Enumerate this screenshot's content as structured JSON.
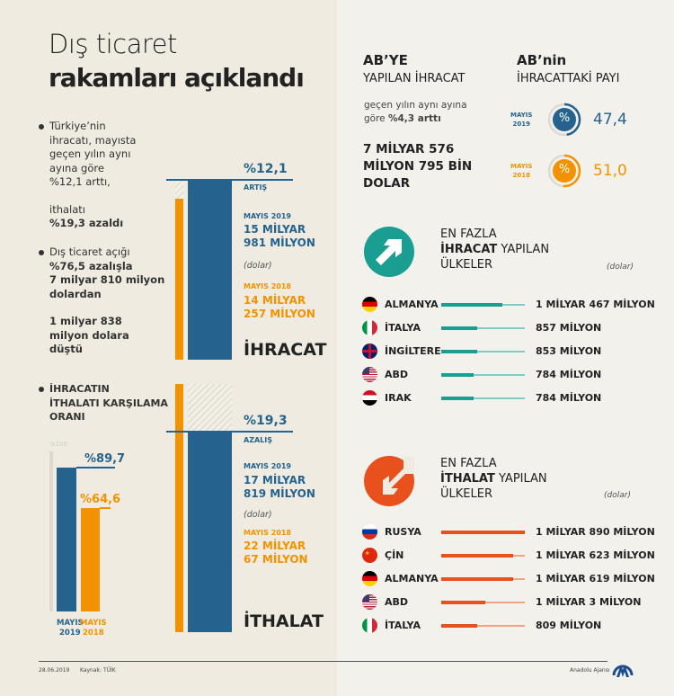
{
  "title": {
    "line1": "Dış ticaret",
    "line2": "rakamları açıklandı"
  },
  "bullets": {
    "b1": [
      "Türkiye’nin",
      "ihracatı, mayısta",
      "geçen yılın aynı",
      "ayına göre",
      "%12,1 arttı,"
    ],
    "b1b": [
      "ithalatı",
      "%19,3 azaldı"
    ],
    "b2": [
      "Dış ticaret açığı",
      "%76,5 azalışla",
      "7 milyar 810 milyon",
      "dolardan"
    ],
    "b2b": [
      "1 milyar 838",
      "milyon dolara",
      "düştü"
    ],
    "b3": [
      "İHRACATIN",
      "İTHALATI KARŞILAMA",
      "ORANI"
    ]
  },
  "export": {
    "change": "%12,1",
    "change_label": "ARTIŞ",
    "y2019_label": "MAYIS 2019",
    "y2019_value": [
      "15 MİLYAR",
      "981 MİLYON"
    ],
    "unit": "(dolar)",
    "y2018_label": "MAYIS 2018",
    "y2018_value": [
      "14 MİLYAR",
      "257 MİLYON"
    ],
    "title": "İHRACAT"
  },
  "import": {
    "change": "%19,3",
    "change_label": "AZALIŞ",
    "y2019_label": "MAYIS 2019",
    "y2019_value": [
      "17 MİLYAR",
      "819 MİLYON"
    ],
    "unit": "(dolar)",
    "y2018_label": "MAYIS 2018",
    "y2018_value": [
      "22 MİLYAR",
      "67 MİLYON"
    ],
    "title": "İTHALAT"
  },
  "ratio": {
    "max_label": "%100",
    "v2019": "%89,7",
    "v2018": "%64,6",
    "l2019": [
      "MAYIS",
      "2019"
    ],
    "l2018": [
      "MAYIS",
      "2018"
    ]
  },
  "eu_export": {
    "title1": "AB’YE",
    "title2": "YAPILAN İHRACAT",
    "desc1": "geçen yılın aynı ayına",
    "desc2_pre": "göre ",
    "desc2_bold": "%4,3 arttı",
    "amount": [
      "7 MİLYAR 576",
      "MİLYON 795 BİN",
      "DOLAR"
    ]
  },
  "eu_share": {
    "title1": "AB’nin",
    "title2": "İHRACATTAKİ PAYI",
    "rows": [
      {
        "label": [
          "MAYIS",
          "2019"
        ],
        "value": "47,4",
        "pct": 47.4,
        "icon": "%"
      },
      {
        "label": [
          "MAYIS",
          "2018"
        ],
        "value": "51,0",
        "pct": 51.0,
        "icon": "%"
      }
    ]
  },
  "top_export": {
    "h1": "EN FAZLA",
    "h2_bold": "İHRACAT",
    "h2_rest": " YAPILAN",
    "h3": "ÜLKELER",
    "unit": "(dolar)",
    "icon": "arrow-up-right-icon",
    "rows": [
      {
        "name": "ALMANYA",
        "value": "1 MİLYAR 467 MİLYON",
        "flag": "de"
      },
      {
        "name": "İTALYA",
        "value": "857 MİLYON",
        "flag": "it"
      },
      {
        "name": "İNGİLTERE",
        "value": "853 MİLYON",
        "flag": "uk"
      },
      {
        "name": "ABD",
        "value": "784 MİLYON",
        "flag": "us"
      },
      {
        "name": "IRAK",
        "value": "784 MİLYON",
        "flag": "iq"
      }
    ]
  },
  "top_import": {
    "h1": "EN FAZLA",
    "h2_bold": "İTHALAT",
    "h2_rest": " YAPILAN",
    "h3": "ÜLKELER",
    "unit": "(dolar)",
    "icon": "arrow-down-left-icon",
    "rows": [
      {
        "name": "RUSYA",
        "value": "1 MİLYAR 890 MİLYON",
        "flag": "ru"
      },
      {
        "name": "ÇİN",
        "value": "1 MİLYAR 623 MİLYON",
        "flag": "cn"
      },
      {
        "name": "ALMANYA",
        "value": "1 MİLYAR 619 MİLYON",
        "flag": "de"
      },
      {
        "name": "ABD",
        "value": "1 MİLYAR 3 MİLYON",
        "flag": "us"
      },
      {
        "name": "İTALYA",
        "value": "809 MİLYON",
        "flag": "it"
      }
    ]
  },
  "footer": {
    "date": "28.06.2019",
    "source": "Kaynak: TÜİK",
    "agency": "Anadolu Ajansı"
  },
  "colors": {
    "blue": "#25638e",
    "orange": "#f39200",
    "teal": "#1a9e92",
    "red": "#e8501e"
  },
  "chart_data": [
    {
      "type": "bar",
      "categories": [
        "MAYIS 2018",
        "MAYIS 2019"
      ],
      "values": [
        14257,
        15981
      ],
      "unit": "milyon dolar",
      "title": "İHRACAT"
    },
    {
      "type": "bar",
      "categories": [
        "MAYIS 2018",
        "MAYIS 2019"
      ],
      "values": [
        22067,
        17819
      ],
      "unit": "milyon dolar",
      "title": "İTHALAT"
    },
    {
      "type": "bar",
      "categories": [
        "MAYIS 2019",
        "MAYIS 2018"
      ],
      "values": [
        89.7,
        64.6
      ],
      "ylim": [
        0,
        100
      ],
      "title": "İHRACATIN İTHALATI KARŞILAMA ORANI"
    },
    {
      "type": "pie",
      "categories": [
        "MAYIS 2019",
        "MAYIS 2018"
      ],
      "values": [
        47.4,
        51.0
      ],
      "title": "AB’nin İHRACATTAKİ PAYI"
    },
    {
      "type": "bar",
      "categories": [
        "ALMANYA",
        "İTALYA",
        "İNGİLTERE",
        "ABD",
        "IRAK"
      ],
      "values": [
        1467,
        857,
        853,
        784,
        784
      ],
      "unit": "milyon dolar"
    },
    {
      "type": "bar",
      "categories": [
        "RUSYA",
        "ÇİN",
        "ALMANYA",
        "ABD",
        "İTALYA"
      ],
      "values": [
        1890,
        1623,
        1619,
        1003,
        809
      ],
      "unit": "milyon dolar"
    }
  ]
}
